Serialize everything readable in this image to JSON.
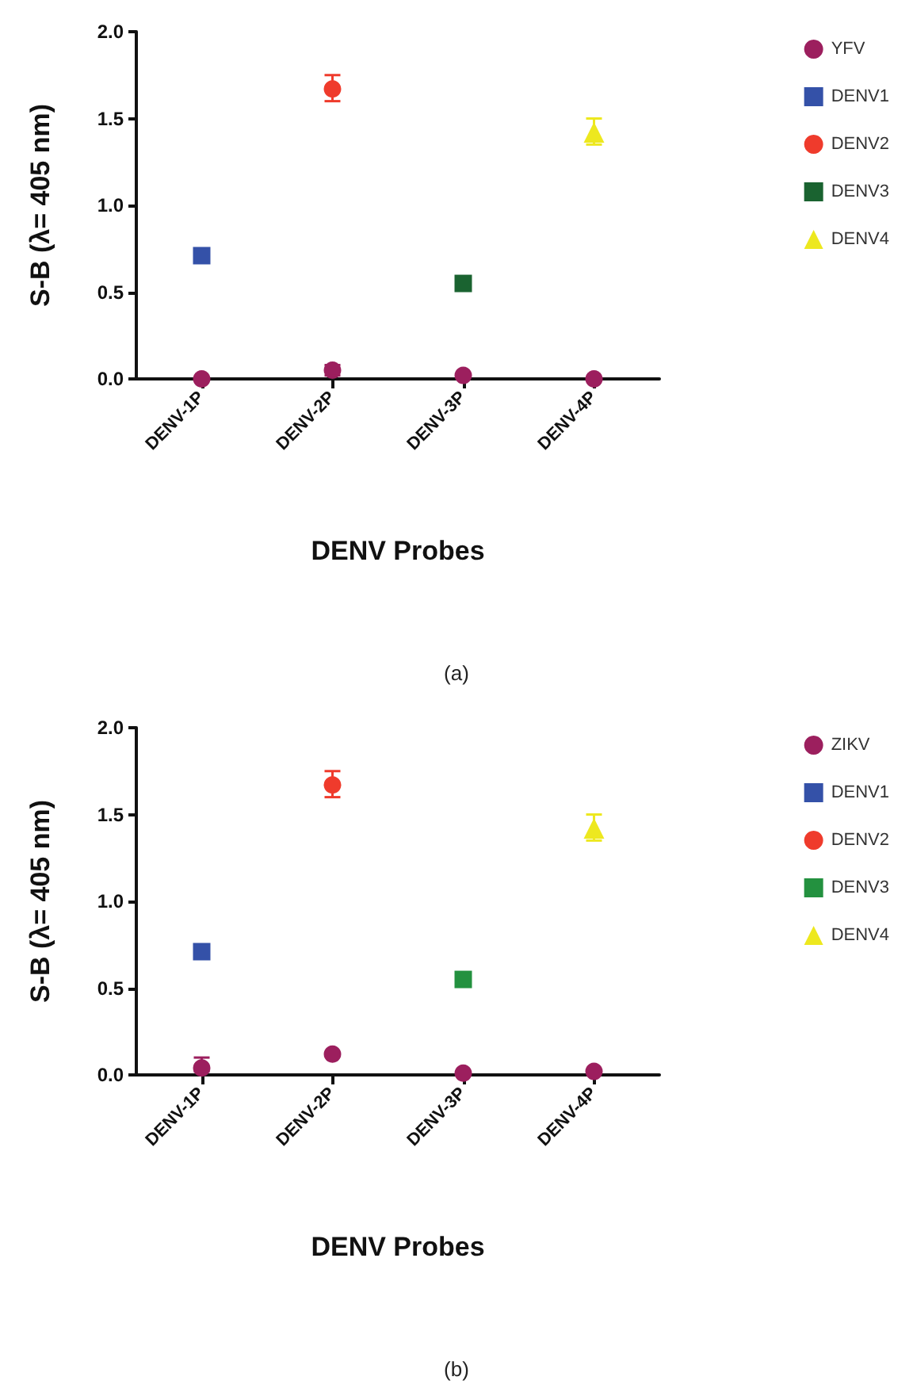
{
  "chart_data": [
    {
      "type": "scatter",
      "xlabel": "DENV Probes",
      "ylabel": "S-B (λ= 405 nm)",
      "annotations": [
        "(a)"
      ],
      "categories": [
        "DENV-1P",
        "DENV-2P",
        "DENV-3P",
        "DENV-4P"
      ],
      "ylim": [
        0,
        2
      ],
      "yticks": [
        {
          "value": 0,
          "label": "0.0"
        },
        {
          "value": 0.5,
          "label": "0.5"
        },
        {
          "value": 1,
          "label": "1.0"
        },
        {
          "value": 1.5,
          "label": "1.5"
        },
        {
          "value": 2,
          "label": "2.0"
        }
      ],
      "grid": false,
      "legend": "right",
      "series": [
        {
          "name": "YFV",
          "color": "#9c1f5e",
          "marker": "circle",
          "values": [
            0.0,
            0.05,
            0.02,
            0.0
          ],
          "errors": [
            null,
            [
              0.02,
              0.08
            ],
            null,
            null
          ]
        },
        {
          "name": "DENV1",
          "color": "#3451a8",
          "marker": "square",
          "values": [
            0.71,
            null,
            null,
            null
          ]
        },
        {
          "name": "DENV2",
          "color": "#ef3b2c",
          "marker": "circle",
          "values": [
            null,
            1.67,
            null,
            null
          ],
          "errors": [
            null,
            [
              1.6,
              1.75
            ],
            null,
            null
          ]
        },
        {
          "name": "DENV3",
          "color": "#1a6330",
          "marker": "square",
          "values": [
            null,
            null,
            0.55,
            null
          ]
        },
        {
          "name": "DENV4",
          "color": "#ede81f",
          "marker": "triangle",
          "values": [
            null,
            null,
            null,
            1.42
          ],
          "errors": [
            null,
            null,
            null,
            [
              1.35,
              1.5
            ]
          ]
        }
      ]
    },
    {
      "type": "scatter",
      "xlabel": "DENV Probes",
      "ylabel": "S-B (λ= 405 nm)",
      "annotations": [
        "(b)"
      ],
      "categories": [
        "DENV-1P",
        "DENV-2P",
        "DENV-3P",
        "DENV-4P"
      ],
      "ylim": [
        0,
        2
      ],
      "yticks": [
        {
          "value": 0,
          "label": "0.0"
        },
        {
          "value": 0.5,
          "label": "0.5"
        },
        {
          "value": 1,
          "label": "1.0"
        },
        {
          "value": 1.5,
          "label": "1.5"
        },
        {
          "value": 2,
          "label": "2.0"
        }
      ],
      "grid": false,
      "legend": "right",
      "series": [
        {
          "name": "ZIKV",
          "color": "#9c1f5e",
          "marker": "circle",
          "values": [
            0.04,
            0.12,
            0.01,
            0.02
          ],
          "errors": [
            [
              0.02,
              0.1
            ],
            null,
            null,
            null
          ]
        },
        {
          "name": "DENV1",
          "color": "#3451a8",
          "marker": "square",
          "values": [
            0.71,
            null,
            null,
            null
          ]
        },
        {
          "name": "DENV2",
          "color": "#ef3b2c",
          "marker": "circle",
          "values": [
            null,
            1.67,
            null,
            null
          ],
          "errors": [
            null,
            [
              1.6,
              1.75
            ],
            null,
            null
          ]
        },
        {
          "name": "DENV3",
          "color": "#23913f",
          "marker": "square",
          "values": [
            null,
            null,
            0.55,
            null
          ]
        },
        {
          "name": "DENV4",
          "color": "#ede81f",
          "marker": "triangle",
          "values": [
            null,
            null,
            null,
            1.42
          ],
          "errors": [
            null,
            null,
            null,
            [
              1.35,
              1.5
            ]
          ]
        }
      ]
    }
  ]
}
